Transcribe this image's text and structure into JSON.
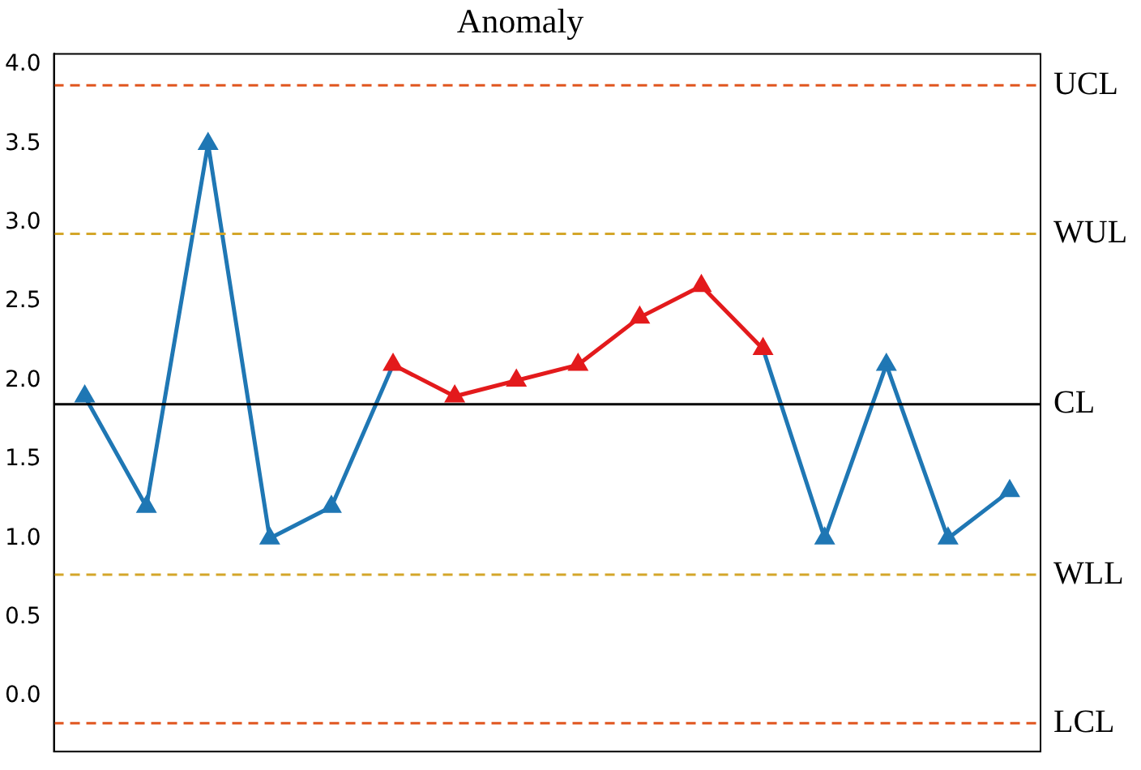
{
  "chart_data": {
    "type": "line",
    "title": "Anomaly",
    "categories": [
      null,
      null,
      null,
      null,
      null,
      null,
      null,
      null,
      null,
      null,
      null,
      null,
      null,
      null,
      null,
      null
    ],
    "series": [
      {
        "color": "#1f77b4",
        "values": [
          1.9,
          1.2,
          3.5,
          1.0,
          1.2,
          2.1,
          null,
          null,
          null,
          null,
          null,
          2.2,
          1.0,
          2.1,
          1.0,
          1.3
        ]
      },
      {
        "color": "#e31a1c",
        "values": [
          null,
          null,
          null,
          null,
          null,
          2.1,
          1.9,
          2.0,
          2.1,
          2.4,
          2.6,
          2.2,
          null,
          null,
          null,
          null
        ]
      }
    ],
    "ylim": [
      -0.35,
      4.07
    ],
    "yticks": [
      {
        "value": 0,
        "label": "0.0"
      },
      0.5,
      {
        "value": 1,
        "label": "1.0"
      },
      1.5,
      {
        "value": 2,
        "label": "2.0"
      },
      2.5,
      {
        "value": 3,
        "label": "3.0"
      },
      3.5,
      {
        "value": 4,
        "label": "4.0"
      }
    ],
    "tick_labels": "y",
    "grid": false,
    "legend": false,
    "marker": "triangle",
    "line_style": "solid",
    "ref_lines": [
      {
        "axis": "y",
        "value": 3.87,
        "label": "UCL",
        "color": "#e0561f",
        "line_style": "dashed"
      },
      {
        "axis": "y",
        "value": 2.93,
        "label": "WUL",
        "color": "#d4a62a",
        "line_style": "dashed"
      },
      {
        "axis": "y",
        "value": 1.85,
        "label": "CL",
        "color": "#000000",
        "line_style": "solid"
      },
      {
        "axis": "y",
        "value": 0.77,
        "label": "WLL",
        "color": "#d4a62a",
        "line_style": "dashed"
      },
      {
        "axis": "y",
        "value": -0.17,
        "label": "LCL",
        "color": "#e0561f",
        "line_style": "dashed"
      }
    ]
  }
}
